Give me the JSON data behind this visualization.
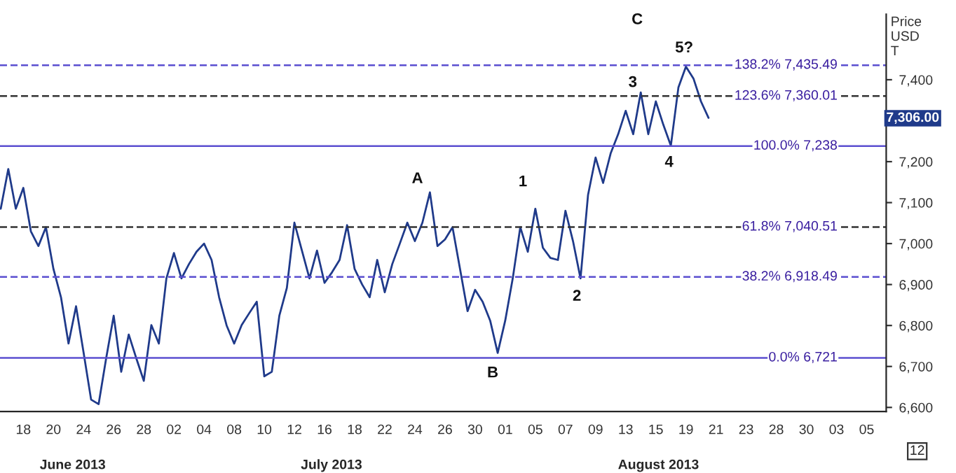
{
  "chart_data": {
    "type": "line",
    "ylabel": "Price\nUSD\nT",
    "categories": [
      null,
      null,
      null,
      "18",
      null,
      null,
      null,
      "20",
      null,
      null,
      null,
      "24",
      null,
      null,
      null,
      "26",
      null,
      null,
      null,
      "28",
      null,
      null,
      null,
      "02",
      null,
      null,
      null,
      "04",
      null,
      null,
      null,
      "08",
      null,
      null,
      null,
      "10",
      null,
      null,
      null,
      "12",
      null,
      null,
      null,
      "16",
      null,
      null,
      null,
      "18",
      null,
      null,
      null,
      "22",
      null,
      null,
      null,
      "24",
      null,
      null,
      null,
      "26",
      null,
      null,
      null,
      "30",
      null,
      null,
      null,
      "01",
      null,
      null,
      null,
      "05",
      null,
      null,
      null,
      "07",
      null,
      null,
      null,
      "09",
      null,
      null,
      null,
      "13",
      null,
      null,
      null,
      "15",
      null,
      null,
      null,
      "19",
      null,
      null,
      null,
      "21",
      null,
      null,
      null,
      "23",
      null,
      null,
      null,
      "28",
      null,
      null,
      null,
      "30",
      null,
      null,
      null,
      "03",
      null,
      null,
      null,
      "05",
      null,
      null
    ],
    "series": [
      {
        "color": "#1f3a8a",
        "values": [
          7085,
          7182,
          7085,
          7136,
          7030,
          6994,
          7040,
          6938,
          6869,
          6756,
          6847,
          6734,
          6619,
          6608,
          6720,
          6824,
          6687,
          6778,
          6720,
          6665,
          6801,
          6756,
          6915,
          6977,
          6915,
          6950,
          6980,
          7000,
          6960,
          6869,
          6800,
          6756,
          6801,
          6830,
          6858,
          6676,
          6687,
          6824,
          6892,
          7051,
          6983,
          6915,
          6983,
          6904,
          6930,
          6960,
          7045,
          6938,
          6900,
          6869,
          6960,
          6881,
          6950,
          7000,
          7051,
          7006,
          7051,
          7125,
          6994,
          7010,
          7040,
          6938,
          6835,
          6887,
          6858,
          6812,
          6733,
          6812,
          6915,
          7040,
          6980,
          7085,
          6990,
          6965,
          6960,
          7080,
          7006,
          6915,
          7119,
          7210,
          7148,
          7220,
          7267,
          7324,
          7267,
          7369,
          7267,
          7347,
          7290,
          7239,
          7381,
          7432,
          7403,
          7347,
          7307,
          null,
          null,
          null,
          null,
          null,
          null,
          null,
          null,
          null,
          null,
          null,
          null,
          null,
          null,
          null,
          null,
          null,
          null,
          null,
          null,
          null,
          null,
          null
        ]
      }
    ],
    "ylim": [
      6590,
      7560
    ],
    "yticks": [
      {
        "value": 6600,
        "label": "6,600"
      },
      {
        "value": 6700,
        "label": "6,700"
      },
      {
        "value": 6800,
        "label": "6,800"
      },
      {
        "value": 6900,
        "label": "6,900"
      },
      {
        "value": 7000,
        "label": "7,000"
      },
      {
        "value": 7100,
        "label": "7,100"
      },
      {
        "value": 7200,
        "label": "7,200"
      },
      {
        "value": 7300,
        "label": null
      },
      {
        "value": 7400,
        "label": "7,400"
      }
    ],
    "grid": false,
    "marker": "none",
    "line_style": "solid",
    "ref_lines": [
      {
        "axis": "y",
        "value": 7435.49,
        "label": "138.2% 7,435.49",
        "color": "#5b4fd0",
        "line_style": "dashed"
      },
      {
        "axis": "y",
        "value": 7360.01,
        "label": "123.6% 7,360.01",
        "color": "#333333",
        "line_style": "dashed"
      },
      {
        "axis": "y",
        "value": 7238,
        "label": "100.0% 7,238",
        "color": "#5b4fd0",
        "line_style": "solid"
      },
      {
        "axis": "y",
        "value": 7040.51,
        "label": "61.8% 7,040.51",
        "color": "#333333",
        "line_style": "dashed"
      },
      {
        "axis": "y",
        "value": 6918.49,
        "label": "38.2% 6,918.49",
        "color": "#5b4fd0",
        "line_style": "dashed"
      },
      {
        "axis": "y",
        "value": 6721,
        "label": "0.0% 6,721",
        "color": "#5b4fd0",
        "line_style": "solid"
      }
    ],
    "annotations": [
      "A",
      "B",
      "C",
      "1",
      "2",
      "3",
      "4",
      "5?",
      "7,306.00",
      "June 2013",
      "July 2013",
      "August 2013",
      "12"
    ]
  }
}
